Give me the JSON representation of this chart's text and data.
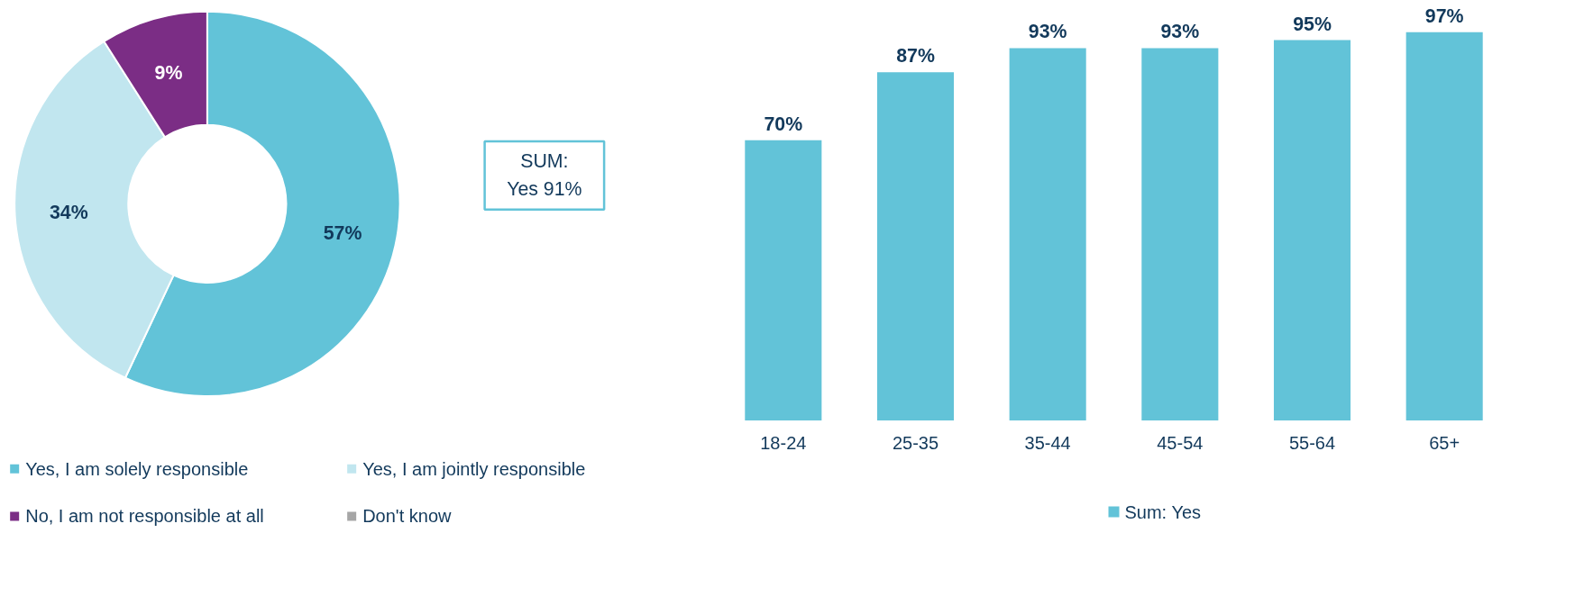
{
  "chart_data": [
    {
      "type": "donut",
      "categories": [
        "Yes, I am solely responsible",
        "Yes, I am jointly responsible",
        "No, I am not responsible at all",
        "Don't know"
      ],
      "values": [
        57,
        34,
        9,
        0
      ],
      "colors": [
        "#62c3d8",
        "#c1e6ef",
        "#7b2d85",
        "#a6a6a6"
      ],
      "value_labels": [
        "57%",
        "34%",
        "9%",
        null
      ],
      "legend": "bottom",
      "annotations": [
        "SUM:\nYes 91%"
      ]
    },
    {
      "type": "bar",
      "categories": [
        "18-24",
        "25-35",
        "35-44",
        "45-54",
        "55-64",
        "65+"
      ],
      "series": [
        {
          "name": "Sum: Yes",
          "color": "#62c3d8",
          "values": [
            70,
            87,
            93,
            93,
            95,
            97
          ],
          "value_labels": [
            "70%",
            "87%",
            "93%",
            "93%",
            "95%",
            "97%"
          ]
        }
      ],
      "legend": "bottom",
      "grid": false
    }
  ]
}
